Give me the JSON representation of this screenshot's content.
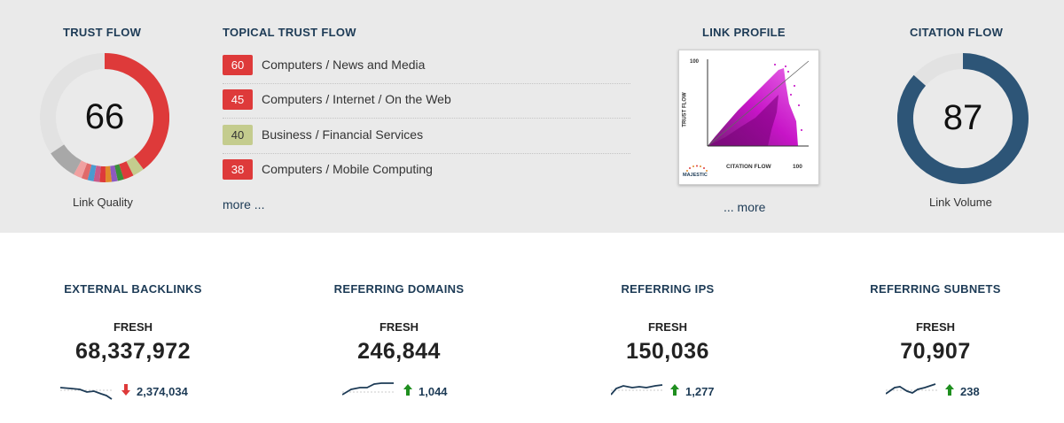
{
  "trust_flow": {
    "heading": "TRUST FLOW",
    "value": "66",
    "label": "Link Quality",
    "score_percent": 66
  },
  "topical_trust_flow": {
    "heading": "TOPICAL TRUST FLOW",
    "items": [
      {
        "score": "60",
        "topic": "Computers / News and Media",
        "color": "#de3a3a"
      },
      {
        "score": "45",
        "topic": "Computers / Internet / On the Web",
        "color": "#de3a3a"
      },
      {
        "score": "40",
        "topic": "Business / Financial Services",
        "color": "#c4cc8e"
      },
      {
        "score": "38",
        "topic": "Computers / Mobile Computing",
        "color": "#de3a3a"
      }
    ],
    "more_label": "more ..."
  },
  "link_profile": {
    "heading": "LINK PROFILE",
    "y_axis_label": "TRUST FLOW",
    "x_axis_label": "CITATION FLOW",
    "y_max_label": "100",
    "x_max_label": "100",
    "logo_text": "MAJESTIC",
    "more_label": "... more"
  },
  "citation_flow": {
    "heading": "CITATION FLOW",
    "value": "87",
    "label": "Link Volume",
    "score_percent": 87
  },
  "metrics": [
    {
      "title": "EXTERNAL BACKLINKS",
      "fresh_label": "FRESH",
      "value": "68,337,972",
      "delta": "2,374,034",
      "direction": "down"
    },
    {
      "title": "REFERRING DOMAINS",
      "fresh_label": "FRESH",
      "value": "246,844",
      "delta": "1,044",
      "direction": "up"
    },
    {
      "title": "REFERRING IPS",
      "fresh_label": "FRESH",
      "value": "150,036",
      "delta": "1,277",
      "direction": "up"
    },
    {
      "title": "REFERRING SUBNETS",
      "fresh_label": "FRESH",
      "value": "70,907",
      "delta": "238",
      "direction": "up"
    }
  ],
  "colors": {
    "heading": "#1d3b56",
    "trust_flow_ring": "#de3a3a",
    "citation_flow_ring": "#2d5577",
    "ring_track": "#e2e2e2",
    "scatter": "#c200c2",
    "arrow_up": "#1f8f1f",
    "arrow_down": "#de3a3a"
  }
}
